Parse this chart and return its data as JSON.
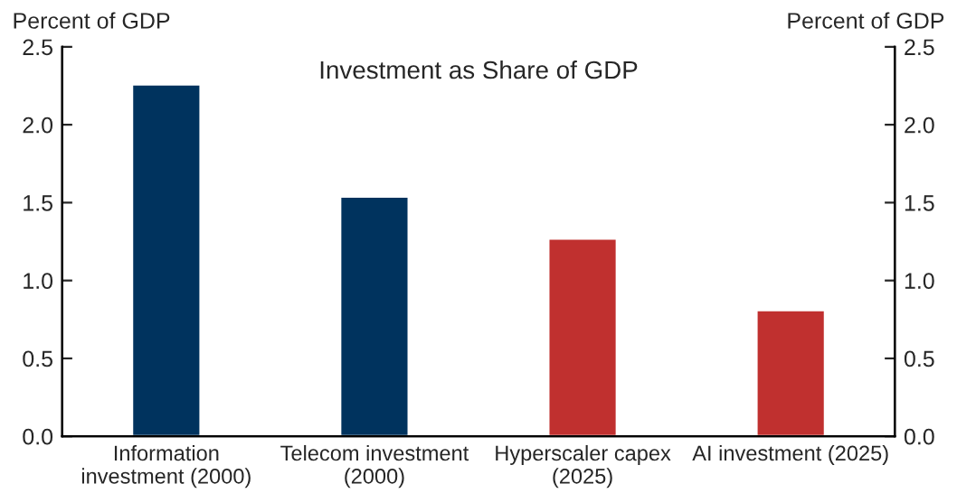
{
  "chart_data": {
    "type": "bar",
    "title": "Investment as Share of GDP",
    "categories": [
      "Information\ninvestment (2000)",
      "Telecom investment\n(2000)",
      "Hyperscaler capex\n(2025)",
      "AI investment (2025)"
    ],
    "values": [
      2.26,
      1.54,
      1.27,
      0.81
    ],
    "colors": [
      "#00335e",
      "#00335e",
      "#c0302f",
      "#c0302f"
    ],
    "ylabel": "Percent of GDP",
    "y2label": "Percent of GDP",
    "ylim": [
      0,
      2.5
    ],
    "yticks": [
      {
        "value": 0,
        "label": "0.0"
      },
      0.5,
      {
        "value": 1,
        "label": "1.0"
      },
      1.5,
      {
        "value": 2,
        "label": "2.0"
      },
      2.5
    ],
    "y2lim": [
      0,
      2.5
    ],
    "y2ticks": [
      {
        "value": 0,
        "label": "0.0"
      },
      0.5,
      {
        "value": 1,
        "label": "1.0"
      },
      1.5,
      {
        "value": 2,
        "label": "2.0"
      },
      2.5
    ],
    "grid": false,
    "legend": false
  }
}
